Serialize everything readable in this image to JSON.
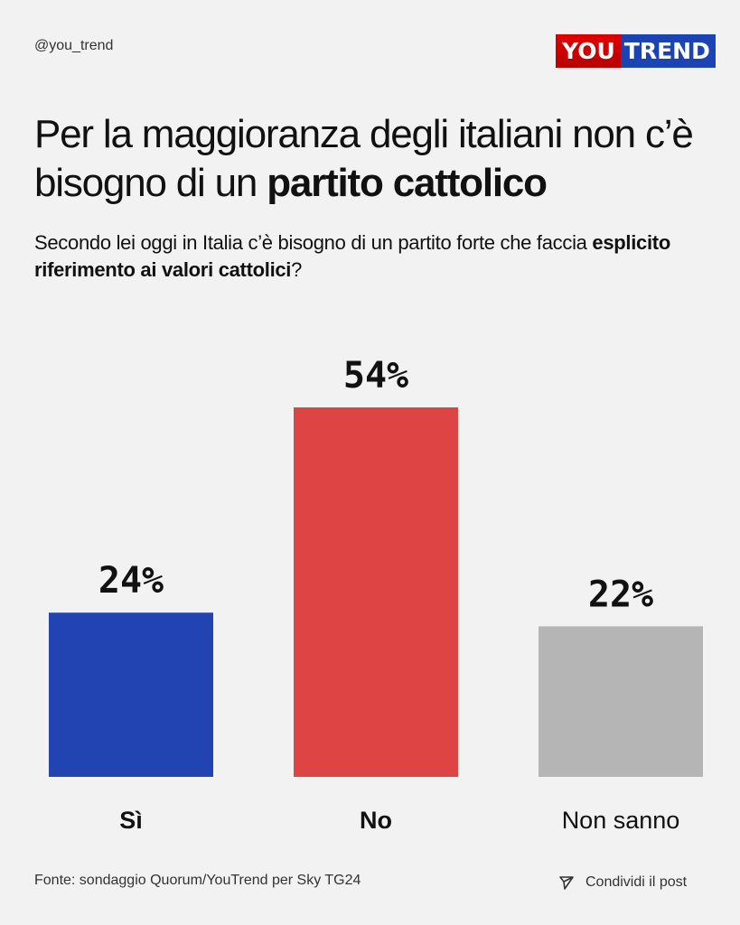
{
  "handle": "@you_trend",
  "logo": {
    "part1": "YOU",
    "part2": "TREND",
    "text": "YouTrend"
  },
  "title": {
    "line_plain": "Per la maggioranza degli italiani non c’è bisogno di un ",
    "line_bold": "partito cattolico"
  },
  "subtitle": {
    "plain1": "Secondo lei oggi in Italia c’è bisogno di un partito forte che faccia ",
    "bold": "esplicito riferimento ai valori cattolici",
    "plain2": "?"
  },
  "chart_data": {
    "type": "bar",
    "categories": [
      "Sì",
      "No",
      "Non sanno"
    ],
    "values": [
      24,
      54,
      22
    ],
    "data_labels": [
      "24%",
      "54%",
      "22%"
    ],
    "colors": [
      "#2144b2",
      "#df4444",
      "#b5b5b5"
    ],
    "bold_categories": [
      true,
      true,
      false
    ],
    "ylim": [
      0,
      54
    ],
    "grid": false
  },
  "footer": {
    "source": "Fonte: sondaggio Quorum/YouTrend per Sky TG24",
    "share_label": "Condividi il post",
    "share_icon": "send-icon"
  }
}
